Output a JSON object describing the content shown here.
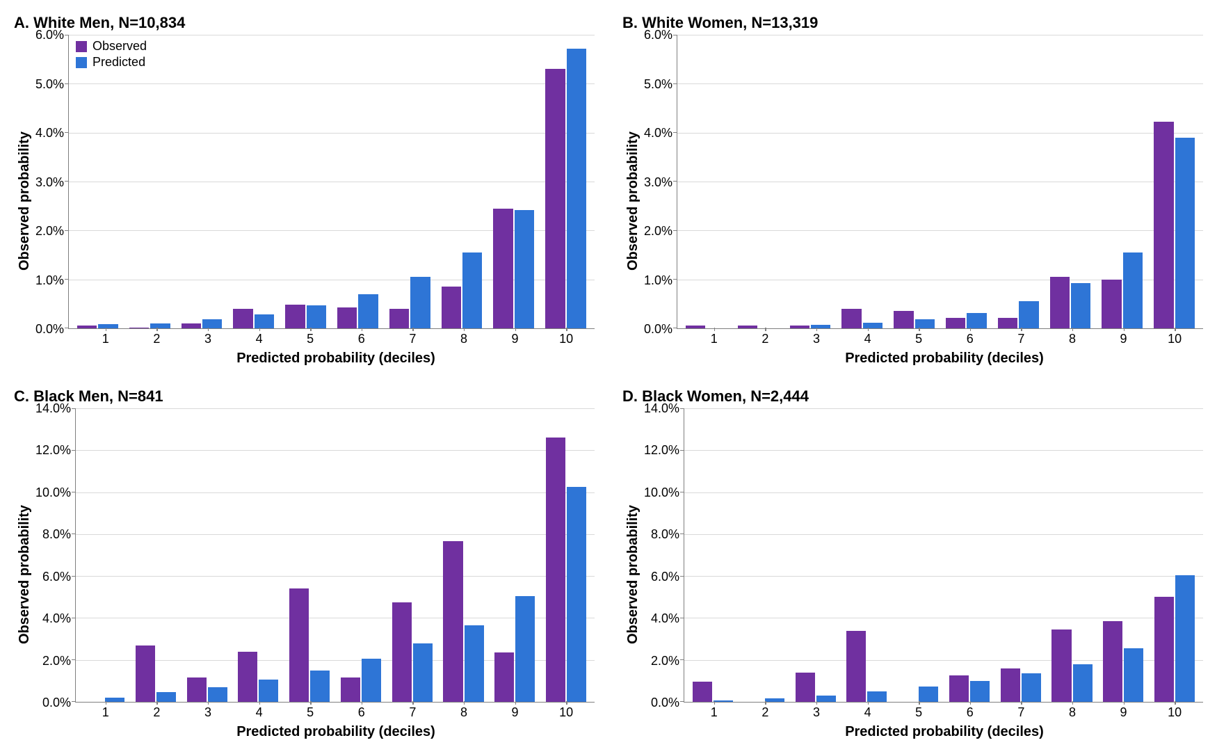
{
  "colors": {
    "observed": "#7030a0",
    "predicted": "#2e75d6",
    "grid": "#d9d9d9",
    "axis": "#7f7f7f",
    "text": "#000000",
    "background": "#ffffff"
  },
  "legend": {
    "observed": "Observed",
    "predicted": "Predicted"
  },
  "x_axis_label": "Predicted probability (deciles)",
  "y_axis_label": "Observed probability",
  "x_categories": [
    "1",
    "2",
    "3",
    "4",
    "5",
    "6",
    "7",
    "8",
    "9",
    "10"
  ],
  "panels": {
    "A": {
      "title": "A. White Men, N=10,834",
      "ymax": 6.0,
      "ytick_step": 1.0,
      "yticks": [
        "0.0%",
        "1.0%",
        "2.0%",
        "3.0%",
        "4.0%",
        "5.0%",
        "6.0%"
      ],
      "show_legend": true,
      "observed": [
        0.05,
        0.01,
        0.1,
        0.4,
        0.48,
        0.43,
        0.4,
        0.85,
        2.45,
        5.3
      ],
      "predicted": [
        0.08,
        0.1,
        0.18,
        0.28,
        0.47,
        0.7,
        1.05,
        1.55,
        2.42,
        5.72
      ]
    },
    "B": {
      "title": "B. White Women, N=13,319",
      "ymax": 6.0,
      "ytick_step": 1.0,
      "yticks": [
        "0.0%",
        "1.0%",
        "2.0%",
        "3.0%",
        "4.0%",
        "5.0%",
        "6.0%"
      ],
      "show_legend": false,
      "observed": [
        0.05,
        0.05,
        0.06,
        0.4,
        0.35,
        0.22,
        0.22,
        1.05,
        1.0,
        4.22
      ],
      "predicted": [
        0.0,
        0.0,
        0.07,
        0.12,
        0.19,
        0.32,
        0.55,
        0.92,
        1.55,
        3.9
      ]
    },
    "C": {
      "title": "C. Black Men, N=841",
      "ymax": 14.0,
      "ytick_step": 2.0,
      "yticks": [
        "0.0%",
        "2.0%",
        "4.0%",
        "6.0%",
        "8.0%",
        "10.0%",
        "12.0%",
        "14.0%"
      ],
      "show_legend": false,
      "observed": [
        0.0,
        2.7,
        1.15,
        2.4,
        5.4,
        1.15,
        4.75,
        7.65,
        2.35,
        12.6
      ],
      "predicted": [
        0.2,
        0.45,
        0.7,
        1.05,
        1.5,
        2.05,
        2.8,
        3.65,
        5.05,
        10.25
      ]
    },
    "D": {
      "title": "D. Black Women, N=2,444",
      "ymax": 14.0,
      "ytick_step": 2.0,
      "yticks": [
        "0.0%",
        "2.0%",
        "4.0%",
        "6.0%",
        "8.0%",
        "10.0%",
        "12.0%",
        "14.0%"
      ],
      "show_legend": false,
      "observed": [
        0.95,
        0.0,
        1.4,
        3.4,
        0.0,
        1.25,
        1.6,
        3.45,
        3.85,
        5.0
      ],
      "predicted": [
        0.08,
        0.15,
        0.3,
        0.5,
        0.72,
        1.0,
        1.35,
        1.8,
        2.55,
        6.05
      ]
    }
  }
}
